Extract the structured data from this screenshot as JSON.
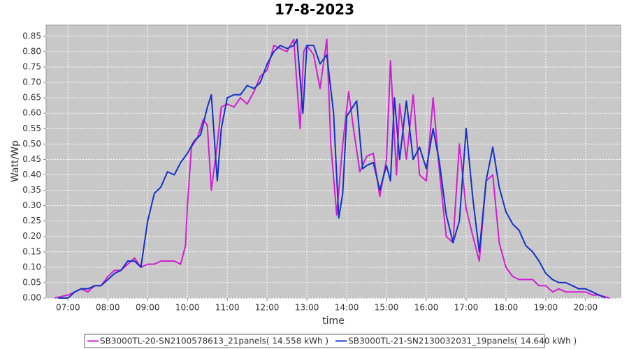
{
  "chart_data": {
    "type": "line",
    "title": "17-8-2023",
    "xlabel": "time",
    "ylabel": "Watt/Wp",
    "grid": true,
    "xlim": [
      6.45,
      20.88
    ],
    "xticks": [
      {
        "value": 7,
        "label": "07:00"
      },
      {
        "value": 8,
        "label": "08:00"
      },
      {
        "value": 9,
        "label": "09:00"
      },
      {
        "value": 10,
        "label": "10:00"
      },
      {
        "value": 11,
        "label": "11:00"
      },
      {
        "value": 12,
        "label": "12:00"
      },
      {
        "value": 13,
        "label": "13:00"
      },
      {
        "value": 14,
        "label": "14:00"
      },
      {
        "value": 15,
        "label": "15:00"
      },
      {
        "value": 16,
        "label": "16:00"
      },
      {
        "value": 17,
        "label": "17:00"
      },
      {
        "value": 18,
        "label": "18:00"
      },
      {
        "value": 19,
        "label": "19:00"
      },
      {
        "value": 20,
        "label": "20:00"
      }
    ],
    "ylim": [
      0,
      0.886
    ],
    "yticks": [
      {
        "value": 0,
        "label": "0.00"
      },
      {
        "value": 0.05,
        "label": "0.05"
      },
      {
        "value": 0.1,
        "label": "0.10"
      },
      {
        "value": 0.15,
        "label": "0.15"
      },
      {
        "value": 0.2,
        "label": "0.20"
      },
      {
        "value": 0.25,
        "label": "0.25"
      },
      {
        "value": 0.3,
        "label": "0.30"
      },
      {
        "value": 0.35,
        "label": "0.35"
      },
      {
        "value": 0.4,
        "label": "0.40"
      },
      {
        "value": 0.45,
        "label": "0.45"
      },
      {
        "value": 0.5,
        "label": "0.50"
      },
      {
        "value": 0.55,
        "label": "0.55"
      },
      {
        "value": 0.6,
        "label": "0.60"
      },
      {
        "value": 0.65,
        "label": "0.65"
      },
      {
        "value": 0.7,
        "label": "0.70"
      },
      {
        "value": 0.75,
        "label": "0.75"
      },
      {
        "value": 0.8,
        "label": "0.80"
      },
      {
        "value": 0.85,
        "label": "0.85"
      }
    ],
    "series": [
      {
        "name": "SB3000TL-20-SN2100578613_21panels( 14.558 kWh )",
        "color": "#d21ed2",
        "x": [
          6.67,
          7.0,
          7.17,
          7.33,
          7.5,
          7.67,
          7.83,
          8.0,
          8.17,
          8.33,
          8.5,
          8.67,
          8.83,
          9.0,
          9.17,
          9.33,
          9.5,
          9.67,
          9.83,
          9.95,
          10.0,
          10.1,
          10.25,
          10.4,
          10.5,
          10.6,
          10.75,
          10.85,
          11.0,
          11.17,
          11.33,
          11.5,
          11.67,
          11.83,
          12.0,
          12.17,
          12.33,
          12.5,
          12.67,
          12.83,
          12.92,
          13.0,
          13.17,
          13.33,
          13.5,
          13.6,
          13.75,
          13.9,
          14.05,
          14.17,
          14.33,
          14.5,
          14.67,
          14.83,
          15.0,
          15.1,
          15.25,
          15.33,
          15.5,
          15.67,
          15.83,
          16.0,
          16.17,
          16.33,
          16.5,
          16.67,
          16.83,
          17.0,
          17.17,
          17.33,
          17.5,
          17.67,
          17.83,
          18.0,
          18.17,
          18.33,
          18.5,
          18.67,
          18.83,
          19.0,
          19.17,
          19.33,
          19.5,
          19.67,
          19.83,
          20.0,
          20.17,
          20.33,
          20.6
        ],
        "values": [
          0.0,
          0.01,
          0.02,
          0.03,
          0.02,
          0.04,
          0.04,
          0.07,
          0.09,
          0.09,
          0.11,
          0.13,
          0.1,
          0.11,
          0.11,
          0.12,
          0.12,
          0.12,
          0.11,
          0.17,
          0.3,
          0.49,
          0.52,
          0.58,
          0.56,
          0.35,
          0.5,
          0.62,
          0.63,
          0.62,
          0.65,
          0.63,
          0.67,
          0.72,
          0.74,
          0.82,
          0.81,
          0.8,
          0.84,
          0.55,
          0.8,
          0.82,
          0.79,
          0.68,
          0.84,
          0.5,
          0.27,
          0.5,
          0.67,
          0.55,
          0.41,
          0.46,
          0.47,
          0.33,
          0.45,
          0.77,
          0.4,
          0.63,
          0.45,
          0.66,
          0.4,
          0.38,
          0.65,
          0.41,
          0.2,
          0.18,
          0.5,
          0.29,
          0.2,
          0.12,
          0.38,
          0.4,
          0.18,
          0.1,
          0.07,
          0.06,
          0.06,
          0.06,
          0.04,
          0.04,
          0.02,
          0.03,
          0.02,
          0.02,
          0.02,
          0.02,
          0.01,
          0.01,
          0.0
        ]
      },
      {
        "name": "SB3000TL-21-SN2130032031_19panels( 14.640 kWh )",
        "color": "#1432c8",
        "x": [
          6.75,
          7.0,
          7.17,
          7.33,
          7.5,
          7.67,
          7.83,
          8.0,
          8.17,
          8.33,
          8.5,
          8.67,
          8.83,
          9.0,
          9.17,
          9.33,
          9.5,
          9.67,
          9.83,
          10.0,
          10.17,
          10.33,
          10.5,
          10.6,
          10.75,
          10.85,
          11.0,
          11.17,
          11.33,
          11.5,
          11.67,
          11.83,
          12.0,
          12.17,
          12.33,
          12.5,
          12.67,
          12.75,
          12.9,
          13.0,
          13.17,
          13.33,
          13.5,
          13.67,
          13.8,
          13.9,
          14.0,
          14.25,
          14.4,
          14.5,
          14.67,
          14.83,
          15.0,
          15.1,
          15.2,
          15.33,
          15.5,
          15.67,
          15.83,
          16.0,
          16.17,
          16.33,
          16.5,
          16.67,
          16.83,
          17.0,
          17.17,
          17.33,
          17.5,
          17.67,
          17.83,
          18.0,
          18.17,
          18.33,
          18.5,
          18.67,
          18.83,
          19.0,
          19.17,
          19.33,
          19.5,
          19.67,
          19.83,
          20.0,
          20.17,
          20.33,
          20.5
        ],
        "values": [
          0.0,
          0.0,
          0.02,
          0.03,
          0.03,
          0.04,
          0.04,
          0.06,
          0.08,
          0.09,
          0.12,
          0.12,
          0.1,
          0.25,
          0.34,
          0.36,
          0.41,
          0.4,
          0.44,
          0.47,
          0.51,
          0.53,
          0.62,
          0.66,
          0.38,
          0.55,
          0.65,
          0.66,
          0.66,
          0.69,
          0.68,
          0.7,
          0.76,
          0.8,
          0.82,
          0.81,
          0.82,
          0.84,
          0.6,
          0.82,
          0.82,
          0.76,
          0.79,
          0.6,
          0.26,
          0.34,
          0.59,
          0.64,
          0.42,
          0.43,
          0.44,
          0.35,
          0.43,
          0.38,
          0.65,
          0.45,
          0.64,
          0.45,
          0.49,
          0.42,
          0.55,
          0.44,
          0.27,
          0.18,
          0.25,
          0.55,
          0.32,
          0.15,
          0.38,
          0.49,
          0.36,
          0.28,
          0.24,
          0.22,
          0.17,
          0.15,
          0.12,
          0.08,
          0.06,
          0.05,
          0.05,
          0.04,
          0.03,
          0.03,
          0.02,
          0.01,
          0.0
        ]
      }
    ]
  }
}
